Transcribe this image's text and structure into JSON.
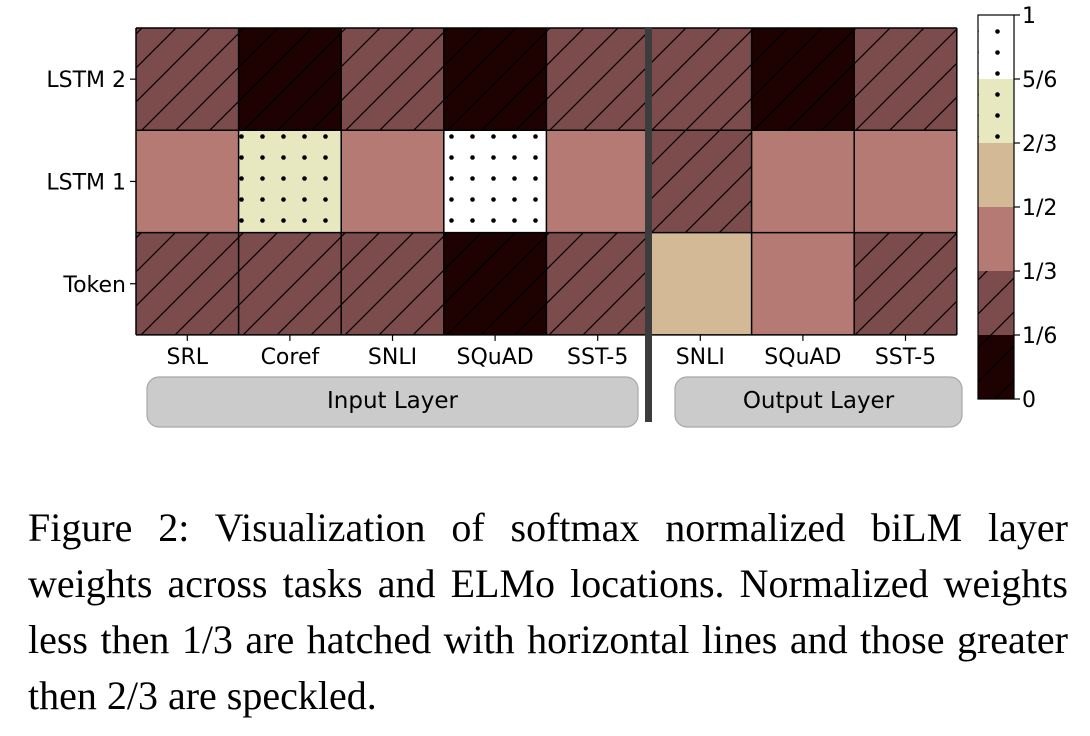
{
  "chart_data": {
    "type": "heatmap",
    "rows": [
      "LSTM 2",
      "LSTM 1",
      "Token"
    ],
    "columns": [
      "SRL",
      "Coref",
      "SNLI",
      "SQuAD",
      "SST-5",
      "SNLI",
      "SQuAD",
      "SST-5"
    ],
    "groups": [
      {
        "label": "Input Layer",
        "columns": [
          0,
          1,
          2,
          3,
          4
        ]
      },
      {
        "label": "Output Layer",
        "columns": [
          5,
          6,
          7
        ]
      }
    ],
    "values": [
      [
        0.25,
        0.05,
        0.25,
        0.05,
        0.25,
        0.25,
        0.05,
        0.25
      ],
      [
        0.42,
        0.75,
        0.42,
        0.9,
        0.42,
        0.25,
        0.42,
        0.42
      ],
      [
        0.25,
        0.25,
        0.25,
        0.05,
        0.25,
        0.58,
        0.42,
        0.25
      ]
    ],
    "colorbar": {
      "ticks": [
        "0",
        "1/6",
        "1/3",
        "1/2",
        "2/3",
        "5/6",
        "1"
      ],
      "levels": [
        {
          "color": "#1e0202",
          "pattern": "hatch"
        },
        {
          "color": "#7c4b4b",
          "pattern": "hatch"
        },
        {
          "color": "#b57a73",
          "pattern": "none"
        },
        {
          "color": "#d4b996",
          "pattern": "none"
        },
        {
          "color": "#e7e7c0",
          "pattern": "dots"
        },
        {
          "color": "#ffffff",
          "pattern": "dots"
        }
      ]
    }
  },
  "caption": "Figure 2: Visualization of softmax normalized biLM layer weights across tasks and ELMo locations. Normalized weights less then 1/3 are hatched with horizontal lines and those greater then 2/3 are speckled."
}
